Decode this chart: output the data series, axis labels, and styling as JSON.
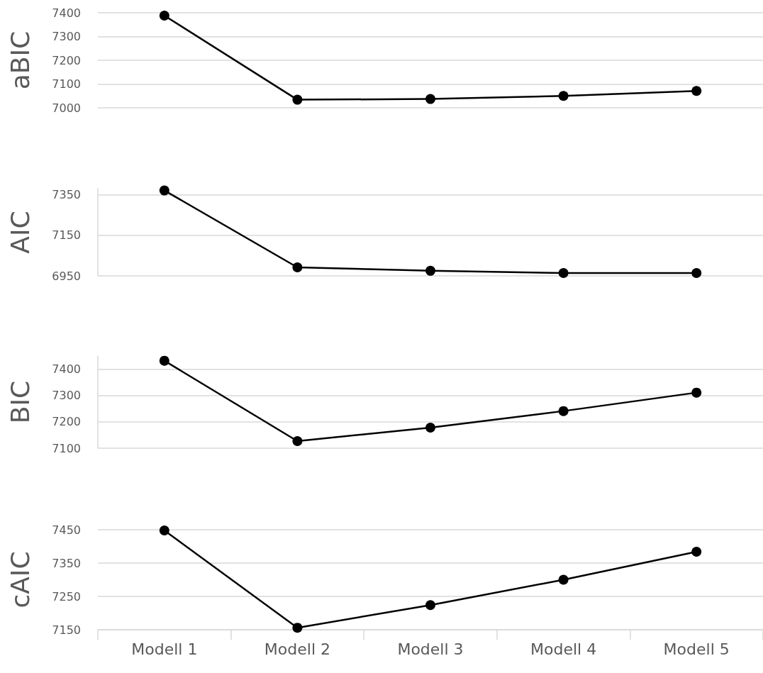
{
  "chart_data": [
    {
      "type": "line",
      "ylabel": "aBIC",
      "categories": [
        null,
        null,
        null,
        null,
        null
      ],
      "series": [
        {
          "color": "#000000",
          "values": [
            7388,
            7034,
            7037,
            7050,
            7071
          ]
        }
      ],
      "ylim": [
        7000,
        7400
      ],
      "yticks": [
        7000,
        7100,
        7200,
        7300,
        7400
      ],
      "grid": "y",
      "marker": "circle",
      "tick_labels": "y"
    },
    {
      "type": "line",
      "ylabel": "AIC",
      "categories": [
        null,
        null,
        null,
        null,
        null
      ],
      "series": [
        {
          "color": "#000000",
          "values": [
            7371,
            6992,
            6975,
            6964,
            6964
          ]
        }
      ],
      "ylim": [
        6950,
        7380
      ],
      "yticks": [
        6950,
        7150,
        7350
      ],
      "grid": "y",
      "marker": "circle",
      "tick_labels": "y"
    },
    {
      "type": "line",
      "ylabel": "BIC",
      "categories": [
        null,
        null,
        null,
        null,
        null
      ],
      "series": [
        {
          "color": "#000000",
          "values": [
            7432,
            7127,
            7178,
            7241,
            7311
          ]
        }
      ],
      "ylim": [
        7100,
        7450
      ],
      "yticks": [
        7100,
        7200,
        7300,
        7400
      ],
      "grid": "y",
      "marker": "circle",
      "tick_labels": "y"
    },
    {
      "type": "line",
      "ylabel": "cAIC",
      "categories": [
        "Modell 1",
        "Modell 2",
        "Modell 3",
        "Modell 4",
        "Modell 5"
      ],
      "series": [
        {
          "color": "#000000",
          "values": [
            7448,
            7156,
            7224,
            7300,
            7384
          ]
        }
      ],
      "ylim": [
        7150,
        7450
      ],
      "yticks": [
        7150,
        7250,
        7350,
        7450
      ],
      "grid": "y",
      "marker": "circle"
    }
  ]
}
